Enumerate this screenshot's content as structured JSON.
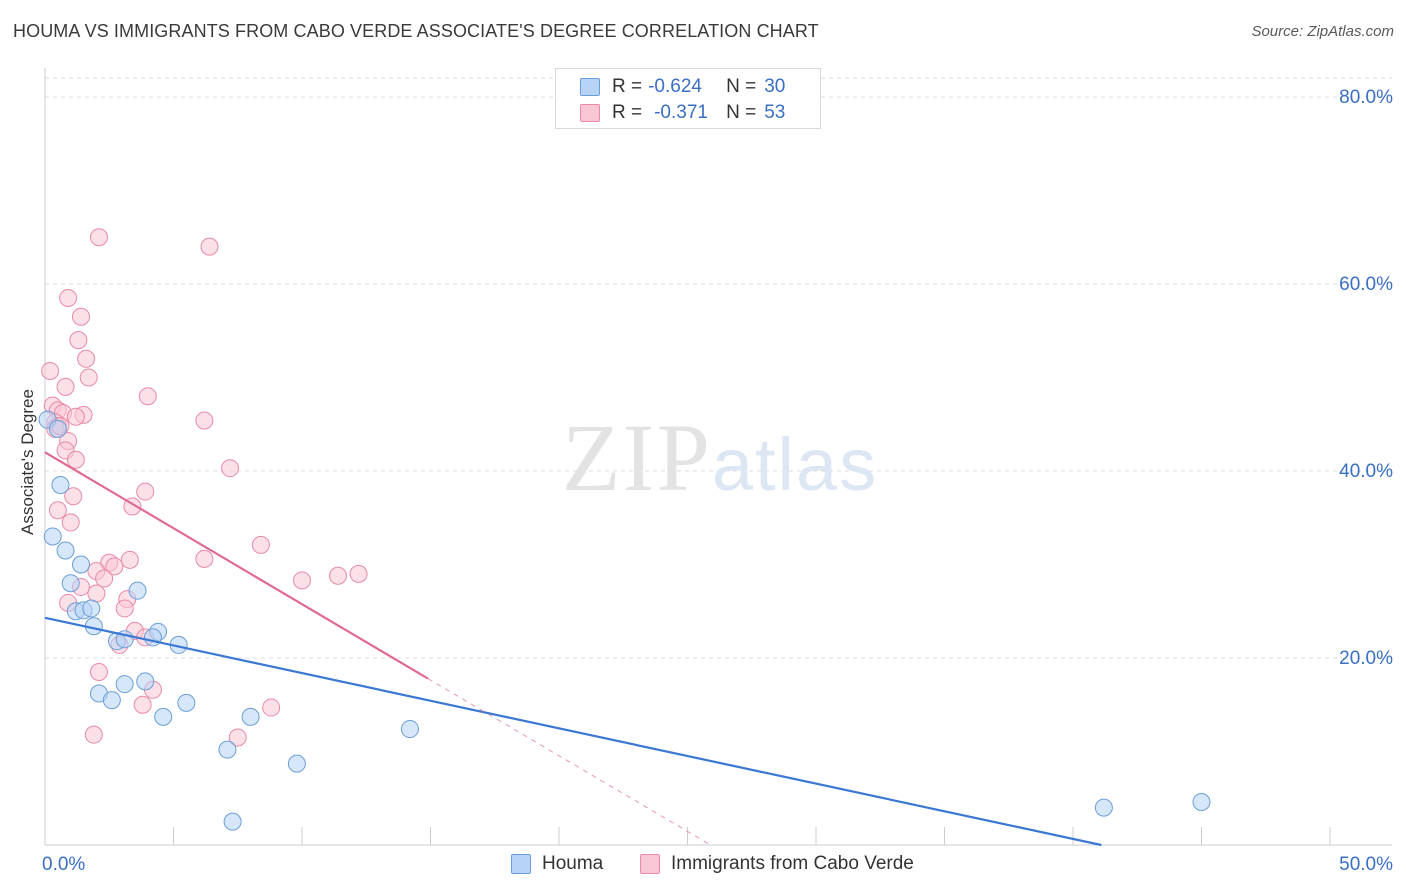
{
  "title": "HOUMA VS IMMIGRANTS FROM CABO VERDE ASSOCIATE'S DEGREE CORRELATION CHART",
  "source": "Source: ZipAtlas.com",
  "watermark": {
    "zip": "ZIP",
    "atlas": "atlas"
  },
  "colors": {
    "houma_fill": "#b7d3f5",
    "houma_stroke": "#6b9ed8",
    "houma_line": "#3a78d4",
    "cabo_fill": "#f9c6d6",
    "cabo_stroke": "#e88aa8",
    "cabo_line": "#e06b92",
    "axis_label": "#3a6fc4",
    "grid": "#dddddd"
  },
  "legend": {
    "houma": {
      "r_label": "R =",
      "r_value": "-0.624",
      "n_label": "N =",
      "n_value": "30"
    },
    "cabo": {
      "r_label": "R =",
      "r_value": "-0.371",
      "n_label": "N =",
      "n_value": "53"
    }
  },
  "chart_data": {
    "type": "scatter",
    "xlabel": "",
    "ylabel": "Associate's Degree",
    "xlim": [
      0,
      50
    ],
    "ylim": [
      0,
      80
    ],
    "x_tick_labels": [
      "0.0%",
      "50.0%"
    ],
    "y_ticks": [
      20,
      40,
      60,
      80
    ],
    "y_tick_labels": [
      "20.0%",
      "40.0%",
      "60.0%",
      "80.0%"
    ],
    "grid": "horizontal dashed",
    "series": [
      {
        "name": "Houma",
        "R": -0.624,
        "N": 30,
        "trend": {
          "x": [
            0,
            41.1
          ],
          "y": [
            24.3,
            0.0
          ],
          "style": "solid"
        },
        "points": [
          [
            0.1,
            45.5
          ],
          [
            0.5,
            44.5
          ],
          [
            0.6,
            38.5
          ],
          [
            0.3,
            33.0
          ],
          [
            0.8,
            31.5
          ],
          [
            1.4,
            30.0
          ],
          [
            1.0,
            28.0
          ],
          [
            3.6,
            27.2
          ],
          [
            1.2,
            25.0
          ],
          [
            1.5,
            25.1
          ],
          [
            1.8,
            25.3
          ],
          [
            1.9,
            23.4
          ],
          [
            4.4,
            22.8
          ],
          [
            2.8,
            21.8
          ],
          [
            4.2,
            22.2
          ],
          [
            3.1,
            22.0
          ],
          [
            5.2,
            21.4
          ],
          [
            3.9,
            17.5
          ],
          [
            3.1,
            17.2
          ],
          [
            2.1,
            16.2
          ],
          [
            2.6,
            15.5
          ],
          [
            5.5,
            15.2
          ],
          [
            4.6,
            13.7
          ],
          [
            8.0,
            13.7
          ],
          [
            14.2,
            12.4
          ],
          [
            7.1,
            10.2
          ],
          [
            9.8,
            8.7
          ],
          [
            41.2,
            4.0
          ],
          [
            45.0,
            4.6
          ],
          [
            7.3,
            2.5
          ]
        ]
      },
      {
        "name": "Immigrants from Cabo Verde",
        "R": -0.371,
        "N": 53,
        "trend": {
          "x": [
            0,
            14.9
          ],
          "y": [
            42.0,
            17.8
          ],
          "style": "solid",
          "extension_x": [
            14.9,
            25.9
          ],
          "extension_y": [
            17.8,
            0.0
          ],
          "extension_style": "dashed"
        },
        "points": [
          [
            2.1,
            65.0
          ],
          [
            6.4,
            64.0
          ],
          [
            0.9,
            58.5
          ],
          [
            1.4,
            56.5
          ],
          [
            1.3,
            54.0
          ],
          [
            1.6,
            52.0
          ],
          [
            0.2,
            50.7
          ],
          [
            1.7,
            50.0
          ],
          [
            0.8,
            49.0
          ],
          [
            4.0,
            48.0
          ],
          [
            0.3,
            47.0
          ],
          [
            0.5,
            46.5
          ],
          [
            0.7,
            46.2
          ],
          [
            1.5,
            46.0
          ],
          [
            1.2,
            45.8
          ],
          [
            6.2,
            45.4
          ],
          [
            0.4,
            45.2
          ],
          [
            0.5,
            44.8
          ],
          [
            0.4,
            44.5
          ],
          [
            0.6,
            44.8
          ],
          [
            0.9,
            43.2
          ],
          [
            0.8,
            42.2
          ],
          [
            1.2,
            41.2
          ],
          [
            7.2,
            40.3
          ],
          [
            1.1,
            37.3
          ],
          [
            3.9,
            37.8
          ],
          [
            3.4,
            36.2
          ],
          [
            0.5,
            35.8
          ],
          [
            1.0,
            34.5
          ],
          [
            8.4,
            32.1
          ],
          [
            6.2,
            30.6
          ],
          [
            3.3,
            30.5
          ],
          [
            2.5,
            30.2
          ],
          [
            2.7,
            29.8
          ],
          [
            2.0,
            29.3
          ],
          [
            11.4,
            28.8
          ],
          [
            12.2,
            29.0
          ],
          [
            10.0,
            28.3
          ],
          [
            2.3,
            28.5
          ],
          [
            1.4,
            27.6
          ],
          [
            2.0,
            26.9
          ],
          [
            3.2,
            26.3
          ],
          [
            0.9,
            25.9
          ],
          [
            3.1,
            25.3
          ],
          [
            3.5,
            22.9
          ],
          [
            3.9,
            22.2
          ],
          [
            2.9,
            21.4
          ],
          [
            2.1,
            18.5
          ],
          [
            4.2,
            16.6
          ],
          [
            3.8,
            15.0
          ],
          [
            8.8,
            14.7
          ],
          [
            1.9,
            11.8
          ],
          [
            7.5,
            11.5
          ]
        ]
      }
    ]
  }
}
